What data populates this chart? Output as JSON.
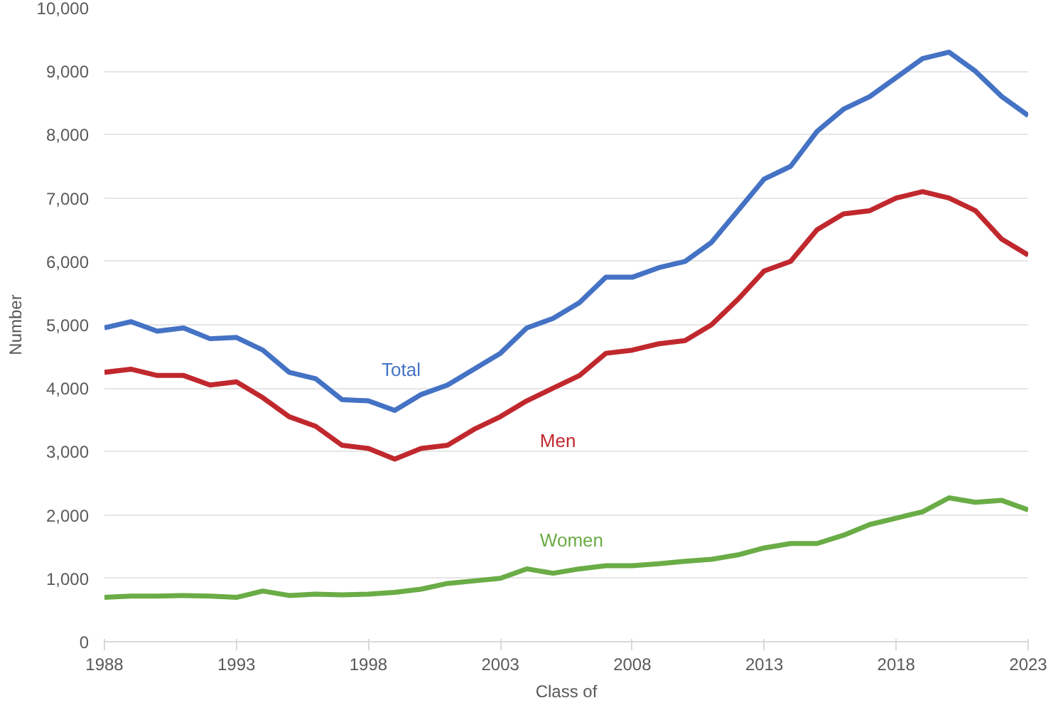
{
  "chart_data": {
    "type": "line",
    "xlabel": "Class of",
    "ylabel": "Number",
    "x": [
      1988,
      1989,
      1990,
      1991,
      1992,
      1993,
      1994,
      1995,
      1996,
      1997,
      1998,
      1999,
      2000,
      2001,
      2002,
      2003,
      2004,
      2005,
      2006,
      2007,
      2008,
      2009,
      2010,
      2011,
      2012,
      2013,
      2014,
      2015,
      2016,
      2017,
      2018,
      2019,
      2020,
      2021,
      2022,
      2023
    ],
    "series": [
      {
        "name": "Total",
        "color": "#4472c4",
        "values": [
          4950,
          5050,
          4900,
          4950,
          4780,
          4800,
          4600,
          4250,
          4150,
          3820,
          3800,
          3650,
          3900,
          4050,
          4300,
          4550,
          4950,
          5100,
          5350,
          5750,
          5750,
          5900,
          6000,
          6300,
          6800,
          7300,
          7500,
          8050,
          8400,
          8600,
          8900,
          9200,
          9300,
          9000,
          8600,
          8300
        ]
      },
      {
        "name": "Men",
        "color": "#c0282d",
        "values": [
          4250,
          4300,
          4200,
          4200,
          4050,
          4100,
          3850,
          3550,
          3400,
          3100,
          3050,
          2880,
          3050,
          3100,
          3350,
          3550,
          3800,
          4000,
          4200,
          4550,
          4600,
          4700,
          4750,
          5000,
          5400,
          5850,
          6000,
          6500,
          6750,
          6800,
          7000,
          7100,
          7000,
          6800,
          6350,
          6100
        ]
      },
      {
        "name": "Women",
        "color": "#6aac46",
        "values": [
          700,
          720,
          720,
          730,
          720,
          700,
          800,
          730,
          750,
          740,
          750,
          780,
          830,
          920,
          960,
          1000,
          1150,
          1080,
          1150,
          1200,
          1200,
          1230,
          1270,
          1300,
          1370,
          1480,
          1550,
          1550,
          1680,
          1850,
          1950,
          2050,
          2270,
          2200,
          2230,
          2080
        ]
      }
    ],
    "xlim": [
      1988,
      2023
    ],
    "xticks": [
      1988,
      1993,
      1998,
      2003,
      2008,
      2013,
      2018,
      2023
    ],
    "ylim": [
      0,
      10000
    ],
    "yticks": [
      {
        "value": 0,
        "label": "0"
      },
      {
        "value": 1000,
        "label": "1,000"
      },
      {
        "value": 2000,
        "label": "2,000"
      },
      {
        "value": 3000,
        "label": "3,000"
      },
      {
        "value": 4000,
        "label": "4,000"
      },
      {
        "value": 5000,
        "label": "5,000"
      },
      {
        "value": 6000,
        "label": "6,000"
      },
      {
        "value": 7000,
        "label": "7,000"
      },
      {
        "value": 8000,
        "label": "8,000"
      },
      {
        "value": 9000,
        "label": "9,000"
      },
      {
        "value": 10000,
        "label": "10,000"
      }
    ],
    "grid": "y",
    "legend": false,
    "marker": "none",
    "line_style": "solid"
  }
}
